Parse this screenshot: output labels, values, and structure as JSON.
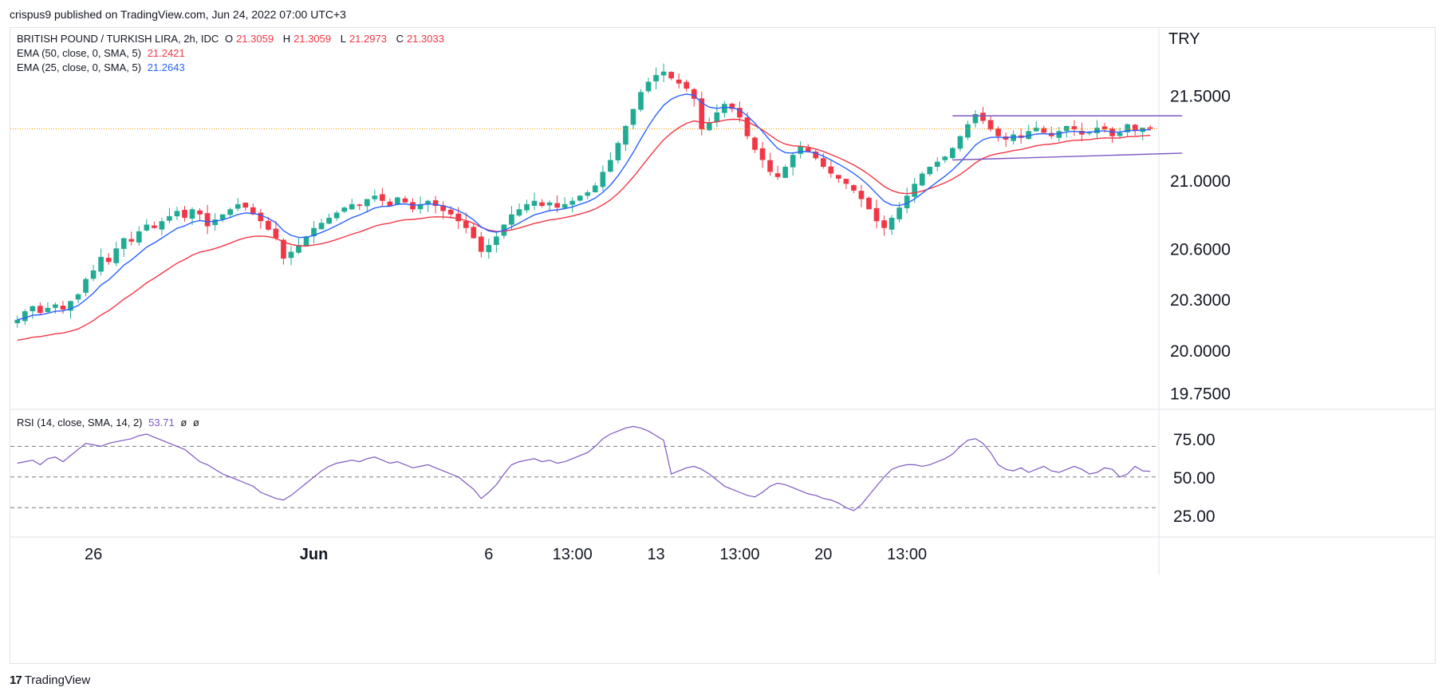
{
  "header": {
    "published_by": "crispus9 published on TradingView.com, Jun 24, 2022 07:00 UTC+3"
  },
  "brand": {
    "name": "TradingView",
    "logo_text": "17"
  },
  "legend": {
    "symbol": "BRITISH POUND / TURKISH LIRA, 2h, IDC",
    "o_label": "O",
    "o_value": "21.3059",
    "h_label": "H",
    "h_value": "21.3059",
    "l_label": "L",
    "l_value": "21.2973",
    "c_label": "C",
    "c_value": "21.3033",
    "ema50_label": "EMA (50, close, 0, SMA, 5)",
    "ema50_value": "21.2421",
    "ema25_label": "EMA (25, close, 0, SMA, 5)",
    "ema25_value": "21.2643",
    "rsi_label": "RSI (14, close, SMA, 14, 2)",
    "rsi_value": "53.71",
    "rsi_extra1": "ø",
    "rsi_extra2": "ø"
  },
  "colors": {
    "up": "#22ab94",
    "down": "#f23645",
    "ema50": "#f23645",
    "ema25": "#2962ff",
    "rsi": "#7e57c2",
    "trendline": "#7e57c2",
    "price_line": "#ff9800",
    "grid": "#f0f3fa",
    "axis_text": "#131722"
  },
  "chart_data": [
    {
      "type": "candlestick",
      "currency": "TRY",
      "y_ticks": [
        "21.5000",
        "21.0000",
        "20.6000",
        "20.3000",
        "20.0000",
        "19.7500"
      ],
      "y_tick_values": [
        21.5,
        21.0,
        20.6,
        20.3,
        20.0,
        19.75
      ],
      "ylim": [
        19.7,
        21.85
      ],
      "x_ticks": [
        "26",
        "Jun",
        "6",
        "13:00",
        "13",
        "13:00",
        "20",
        "13:00"
      ],
      "x_tick_positions": [
        10,
        39,
        62,
        73,
        84,
        95,
        106,
        117
      ],
      "bar_count": 150,
      "last_close": 21.3033,
      "series": [
        {
          "name": "EMA (50, close, 0, SMA, 5)",
          "last": 21.2421
        },
        {
          "name": "EMA (25, close, 0, SMA, 5)",
          "last": 21.2643
        }
      ],
      "closes": [
        20.18,
        20.23,
        20.26,
        20.22,
        20.25,
        20.27,
        20.24,
        20.29,
        20.33,
        20.42,
        20.47,
        20.55,
        20.52,
        20.6,
        20.66,
        20.64,
        20.7,
        20.74,
        20.72,
        20.76,
        20.79,
        20.82,
        20.78,
        20.83,
        20.8,
        20.73,
        20.77,
        20.8,
        20.83,
        20.86,
        20.84,
        20.8,
        20.76,
        20.71,
        20.66,
        20.54,
        20.58,
        20.62,
        20.67,
        20.72,
        20.75,
        20.78,
        20.81,
        20.84,
        20.86,
        20.85,
        20.89,
        20.91,
        20.88,
        20.85,
        20.9,
        20.87,
        20.83,
        20.86,
        20.88,
        20.85,
        20.82,
        20.8,
        20.76,
        20.72,
        20.66,
        20.58,
        20.62,
        20.67,
        20.74,
        20.8,
        20.83,
        20.86,
        20.88,
        20.85,
        20.87,
        20.84,
        20.86,
        20.88,
        20.91,
        20.93,
        20.97,
        21.05,
        21.12,
        21.22,
        21.32,
        21.42,
        21.52,
        21.58,
        21.62,
        21.64,
        21.6,
        21.57,
        21.54,
        21.48,
        21.3,
        21.34,
        21.4,
        21.45,
        21.42,
        21.37,
        21.26,
        21.18,
        21.12,
        21.05,
        21.02,
        21.08,
        21.15,
        21.2,
        21.17,
        21.13,
        21.08,
        21.04,
        21.01,
        20.98,
        20.94,
        20.89,
        20.83,
        20.76,
        20.72,
        20.78,
        20.84,
        20.91,
        20.98,
        21.04,
        21.08,
        21.11,
        21.14,
        21.19,
        21.26,
        21.33,
        21.39,
        21.35,
        21.3,
        21.26,
        21.24,
        21.27,
        21.25,
        21.29,
        21.31,
        21.28,
        21.26,
        21.29,
        21.32,
        21.3,
        21.27,
        21.28,
        21.31,
        21.3,
        21.26,
        21.28,
        21.33,
        21.29,
        21.31,
        21.3033
      ],
      "trendlines": [
        {
          "from": [
            123,
            21.38
          ],
          "to": [
            150,
            21.38
          ]
        },
        {
          "from": [
            123,
            21.12
          ],
          "to": [
            150,
            21.16
          ]
        }
      ]
    },
    {
      "type": "line",
      "name": "RSI (14, close, SMA, 14, 2)",
      "y_ticks": [
        "75.00",
        "50.00",
        "25.00"
      ],
      "y_tick_values": [
        75,
        50,
        25
      ],
      "ylim": [
        15,
        90
      ],
      "bands": [
        70,
        50,
        30
      ],
      "values": [
        59,
        60,
        61,
        58,
        62,
        63,
        60,
        64,
        68,
        72,
        71,
        70,
        72,
        73,
        74,
        75,
        77,
        78,
        76,
        74,
        72,
        70,
        68,
        64,
        60,
        58,
        55,
        52,
        50,
        48,
        46,
        44,
        40,
        38,
        36,
        35,
        38,
        42,
        46,
        50,
        54,
        57,
        59,
        60,
        61,
        60,
        62,
        63,
        61,
        59,
        60,
        58,
        56,
        57,
        58,
        56,
        54,
        52,
        50,
        46,
        42,
        36,
        40,
        45,
        52,
        58,
        60,
        61,
        62,
        60,
        61,
        59,
        60,
        62,
        64,
        66,
        70,
        75,
        78,
        80,
        82,
        83,
        82,
        80,
        77,
        74,
        52,
        54,
        56,
        57,
        55,
        52,
        48,
        44,
        42,
        40,
        38,
        37,
        40,
        44,
        46,
        45,
        43,
        41,
        39,
        38,
        36,
        35,
        33,
        30,
        28,
        32,
        38,
        44,
        50,
        55,
        57,
        58,
        58,
        57,
        58,
        60,
        62,
        65,
        70,
        74,
        75,
        72,
        66,
        58,
        55,
        54,
        56,
        53,
        55,
        57,
        54,
        53,
        55,
        57,
        55,
        52,
        53,
        56,
        55,
        50,
        52,
        57,
        54,
        53.71
      ]
    }
  ]
}
